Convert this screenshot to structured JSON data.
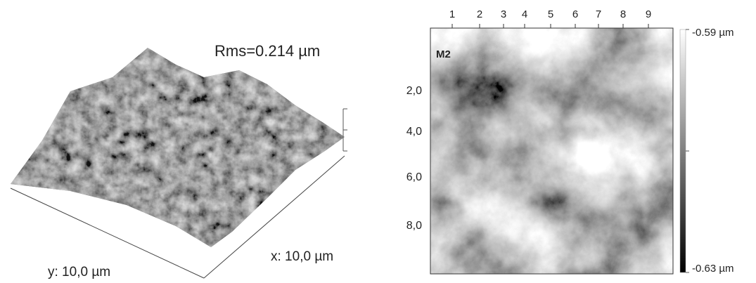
{
  "surface_3d": {
    "rms_label": "Rms=0.214  µm",
    "y_label": "y: 10,0 µm",
    "x_label": "x: 10,0 µm"
  },
  "height_map": {
    "panel_label": "M2",
    "top_ticks": [
      "1",
      "2",
      "3",
      "4",
      "5",
      "6",
      "7",
      "8",
      "9"
    ],
    "left_ticks": [
      "2,0",
      "4,0",
      "6,0",
      "8,0"
    ],
    "colorbar_max": "-0.59 µm",
    "colorbar_min": "-0.63 µm"
  }
}
